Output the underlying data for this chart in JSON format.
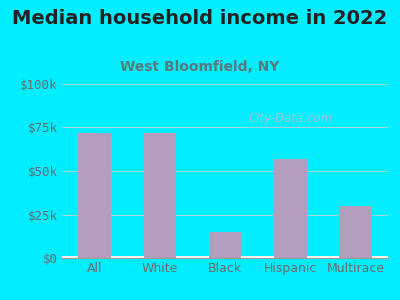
{
  "title": "Median household income in 2022",
  "subtitle": "West Bloomfield, NY",
  "categories": [
    "All",
    "White",
    "Black",
    "Hispanic",
    "Multirace"
  ],
  "values": [
    72000,
    72000,
    15000,
    57000,
    30000
  ],
  "bar_color": "#b39dbd",
  "background_color": "#00eeff",
  "title_color": "#222222",
  "subtitle_color": "#5a7a7a",
  "tick_label_color": "#6a6a6a",
  "ylim": [
    0,
    100000
  ],
  "yticks": [
    0,
    25000,
    50000,
    75000,
    100000
  ],
  "ytick_labels": [
    "$0",
    "$25k",
    "$50k",
    "$75k",
    "$100k"
  ],
  "watermark": "City-Data.com",
  "title_fontsize": 14,
  "subtitle_fontsize": 10,
  "tick_fontsize": 9
}
